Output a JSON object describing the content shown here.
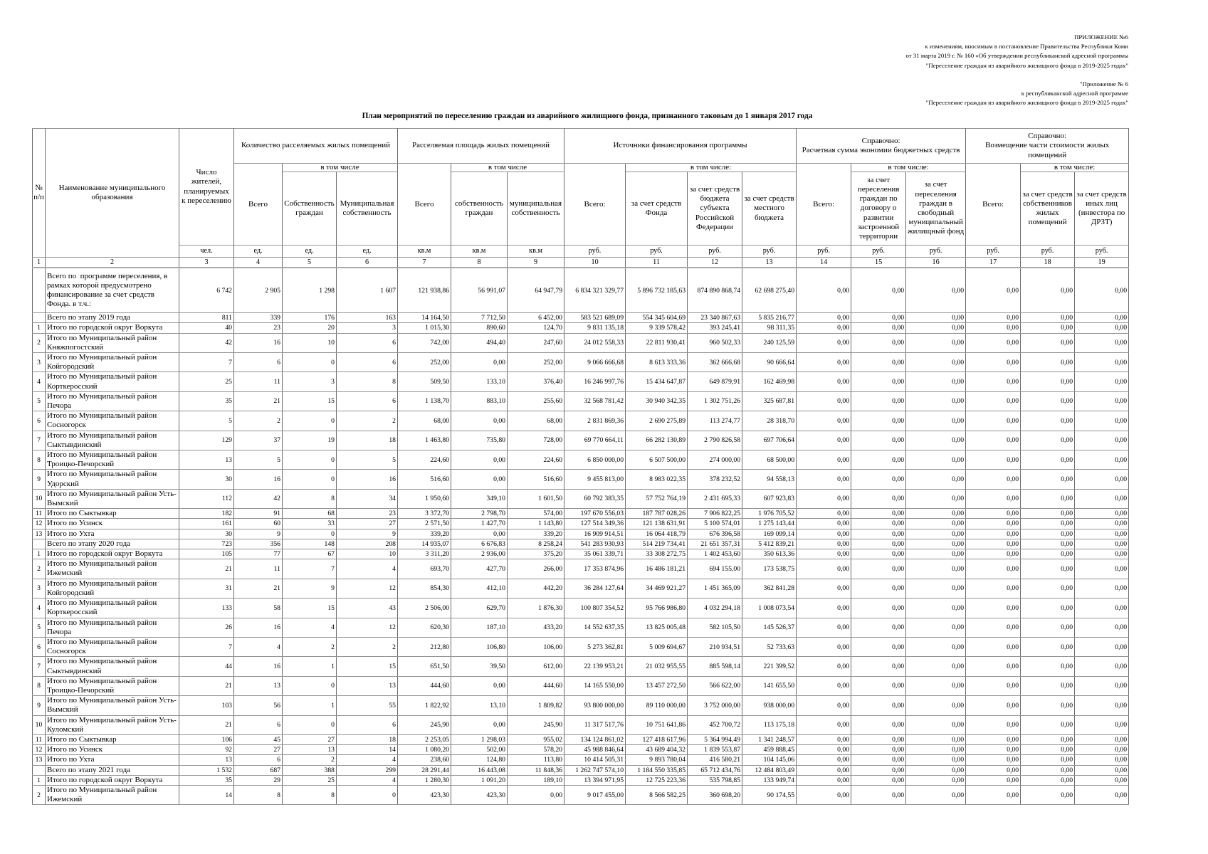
{
  "page": {
    "appendix_change_lines": [
      "ПРИЛОЖЕНИЕ №6",
      "к изменениям, вносимым в постановление Правительства Республики Коми",
      "от 31 марта 2019 г. № 160 «Об утверждении республиканской адресной программы",
      "\"Переселение граждан из аварийного жилищного фонда в 2019-2025 годах\""
    ],
    "appendix_program_lines": [
      "\"Приложение № 6",
      "к республиканской адресной программе",
      "\"Переселение граждан из аварийного жилищного фонда в 2019-2025 годах\""
    ],
    "title": "План мероприятий по переселению граждан из аварийного жилищного фонда, признанного таковым до 1 января 2017 года"
  },
  "table": {
    "header": {
      "col_num": "№ п/п",
      "col_name": "Наименование муниципального образования",
      "col_residents": "Число жителей, планируемых к переселению",
      "groups": {
        "dwellings": {
          "label": "Количество расселяемых жилых помещений",
          "total": "Всего",
          "including": "в том числе",
          "sub1": "Собственность граждан",
          "sub2": "Муниципальная собственность"
        },
        "area": {
          "label": "Расселяемая площадь жилых помещений",
          "total": "Всего",
          "including": "в том числе",
          "sub1": "собственность граждан",
          "sub2": "муниципальная собственность"
        },
        "financing": {
          "label": "Источники финансирования программы",
          "total": "Всего:",
          "including": "в том числе:",
          "sub1": "за счет средств Фонда",
          "sub2": "за счет средств бюджета субъекта Российской Федерации",
          "sub3": "за счет средств местного бюджета"
        },
        "savings": {
          "label": "Справочно:\nРасчетная сумма экономии бюджетных средств",
          "total": "Всего:",
          "including": "в том числе:",
          "sub1": "за счет переселения граждан по договору о развитии застроенной территории",
          "sub2": "за счет переселения граждан в свободный муниципальный жилищный фонд"
        },
        "reimbursement": {
          "label": "Справочно:\nВозмещение части стоимости жилых помещений",
          "total": "Всего:",
          "including": "в том числе:",
          "sub1": "за счет средств собственников жилых помещений",
          "sub2": "за счет средств иных лиц (инвестора по ДРЗТ)"
        }
      },
      "units": [
        "чел.",
        "ед.",
        "ед.",
        "ед.",
        "кв.м",
        "кв.м",
        "кв.м",
        "руб.",
        "руб.",
        "руб.",
        "руб.",
        "руб.",
        "руб.",
        "руб.",
        "руб.",
        "руб.",
        "руб."
      ],
      "col_numbers": [
        "1",
        "2",
        "3",
        "4",
        "5",
        "6",
        "7",
        "8",
        "9",
        "10",
        "11",
        "12",
        "13",
        "14",
        "15",
        "16",
        "17",
        "18",
        "19"
      ]
    },
    "rows": [
      {
        "num": "",
        "tall": true,
        "name": "Всего по  программе переселения, в рамках которой предусмотрено финансирование за счет средств Фонда. в т.ч.:",
        "values": [
          "6 742",
          "2 905",
          "1 298",
          "1 607",
          "121 938,86",
          "56 991,07",
          "64 947,79",
          "6 834 321 329,77",
          "5 896 732 185,63",
          "874 890 868,74",
          "62 698 275,40",
          "0,00",
          "0,00",
          "0,00",
          "0,00",
          "0,00",
          "0,00"
        ]
      },
      {
        "num": "",
        "name": "Всего по этапу 2019 года",
        "values": [
          "811",
          "339",
          "176",
          "163",
          "14 164,50",
          "7 712,50",
          "6 452,00",
          "583 521 689,09",
          "554 345 604,69",
          "23 340 867,63",
          "5 835 216,77",
          "0,00",
          "0,00",
          "0,00",
          "0,00",
          "0,00",
          "0,00"
        ]
      },
      {
        "num": "1",
        "name": "Итого по городской округ Воркута",
        "values": [
          "40",
          "23",
          "20",
          "3",
          "1 015,30",
          "890,60",
          "124,70",
          "9 831 135,18",
          "9 339 578,42",
          "393 245,41",
          "98 311,35",
          "0,00",
          "0,00",
          "0,00",
          "0,00",
          "0,00",
          "0,00"
        ]
      },
      {
        "num": "2",
        "name": "Итого по Муниципальный район Княжпогостский",
        "values": [
          "42",
          "16",
          "10",
          "6",
          "742,00",
          "494,40",
          "247,60",
          "24 012 558,33",
          "22 811 930,41",
          "960 502,33",
          "240 125,59",
          "0,00",
          "0,00",
          "0,00",
          "0,00",
          "0,00",
          "0,00"
        ]
      },
      {
        "num": "3",
        "name": "Итого по Муниципальный район Койгородский",
        "values": [
          "7",
          "6",
          "0",
          "6",
          "252,00",
          "0,00",
          "252,00",
          "9 066 666,68",
          "8 613 333,36",
          "362 666,68",
          "90 666,64",
          "0,00",
          "0,00",
          "0,00",
          "0,00",
          "0,00",
          "0,00"
        ]
      },
      {
        "num": "4",
        "name": "Итого по Муниципальный район Корткеросский",
        "values": [
          "25",
          "11",
          "3",
          "8",
          "509,50",
          "133,10",
          "376,40",
          "16 246 997,76",
          "15 434 647,87",
          "649 879,91",
          "162 469,98",
          "0,00",
          "0,00",
          "0,00",
          "0,00",
          "0,00",
          "0,00"
        ]
      },
      {
        "num": "5",
        "name": "Итого по Муниципальный район Печора",
        "values": [
          "35",
          "21",
          "15",
          "6",
          "1 138,70",
          "883,10",
          "255,60",
          "32 568 781,42",
          "30 940 342,35",
          "1 302 751,26",
          "325 687,81",
          "0,00",
          "0,00",
          "0,00",
          "0,00",
          "0,00",
          "0,00"
        ]
      },
      {
        "num": "6",
        "name": "Итого по Муниципальный район Сосногорск",
        "values": [
          "5",
          "2",
          "0",
          "2",
          "68,00",
          "0,00",
          "68,00",
          "2 831 869,36",
          "2 690 275,89",
          "113 274,77",
          "28 318,70",
          "0,00",
          "0,00",
          "0,00",
          "0,00",
          "0,00",
          "0,00"
        ]
      },
      {
        "num": "7",
        "name": "Итого по Муниципальный район Сыктывдинский",
        "values": [
          "129",
          "37",
          "19",
          "18",
          "1 463,80",
          "735,80",
          "728,00",
          "69 770 664,11",
          "66 282 130,89",
          "2 790 826,58",
          "697 706,64",
          "0,00",
          "0,00",
          "0,00",
          "0,00",
          "0,00",
          "0,00"
        ]
      },
      {
        "num": "8",
        "name": "Итого по Муниципальный район Троицко-Печорский",
        "values": [
          "13",
          "5",
          "0",
          "5",
          "224,60",
          "0,00",
          "224,60",
          "6 850 000,00",
          "6 507 500,00",
          "274 000,00",
          "68 500,00",
          "0,00",
          "0,00",
          "0,00",
          "0,00",
          "0,00",
          "0,00"
        ]
      },
      {
        "num": "9",
        "name": "Итого по Муниципальный район Удорский",
        "values": [
          "30",
          "16",
          "0",
          "16",
          "516,60",
          "0,00",
          "516,60",
          "9 455 813,00",
          "8 983 022,35",
          "378 232,52",
          "94 558,13",
          "0,00",
          "0,00",
          "0,00",
          "0,00",
          "0,00",
          "0,00"
        ]
      },
      {
        "num": "10",
        "name": "Итого по Муниципальный район Усть-Вымский",
        "values": [
          "112",
          "42",
          "8",
          "34",
          "1 950,60",
          "349,10",
          "1 601,50",
          "60 792 383,35",
          "57 752 764,19",
          "2 431 695,33",
          "607 923,83",
          "0,00",
          "0,00",
          "0,00",
          "0,00",
          "0,00",
          "0,00"
        ]
      },
      {
        "num": "11",
        "name": "Итого по Сыктывкар",
        "values": [
          "182",
          "91",
          "68",
          "23",
          "3 372,70",
          "2 798,70",
          "574,00",
          "197 670 556,03",
          "187 787 028,26",
          "7 906 822,25",
          "1 976 705,52",
          "0,00",
          "0,00",
          "0,00",
          "0,00",
          "0,00",
          "0,00"
        ]
      },
      {
        "num": "12",
        "name": "Итого по Усинск",
        "values": [
          "161",
          "60",
          "33",
          "27",
          "2 571,50",
          "1 427,70",
          "1 143,80",
          "127 514 349,36",
          "121 138 631,91",
          "5 100 574,01",
          "1 275 143,44",
          "0,00",
          "0,00",
          "0,00",
          "0,00",
          "0,00",
          "0,00"
        ]
      },
      {
        "num": "13",
        "name": "Итого по Ухта",
        "values": [
          "30",
          "9",
          "0",
          "9",
          "339,20",
          "0,00",
          "339,20",
          "16 909 914,51",
          "16 064 418,79",
          "676 396,58",
          "169 099,14",
          "0,00",
          "0,00",
          "0,00",
          "0,00",
          "0,00",
          "0,00"
        ]
      },
      {
        "num": "",
        "name": "Всего по этапу 2020 года",
        "values": [
          "723",
          "356",
          "148",
          "208",
          "14 935,07",
          "6 676,83",
          "8 258,24",
          "541 283 930,93",
          "514 219 734,41",
          "21 651 357,31",
          "5 412 839,21",
          "0,00",
          "0,00",
          "0,00",
          "0,00",
          "0,00",
          "0,00"
        ]
      },
      {
        "num": "1",
        "name": "Итого по городской округ Воркута",
        "values": [
          "105",
          "77",
          "67",
          "10",
          "3 311,20",
          "2 936,00",
          "375,20",
          "35 061 339,71",
          "33 308 272,75",
          "1 402 453,60",
          "350 613,36",
          "0,00",
          "0,00",
          "0,00",
          "0,00",
          "0,00",
          "0,00"
        ]
      },
      {
        "num": "2",
        "name": "Итого по Муниципальный район Ижемский",
        "values": [
          "21",
          "11",
          "7",
          "4",
          "693,70",
          "427,70",
          "266,00",
          "17 353 874,96",
          "16 486 181,21",
          "694 155,00",
          "173 538,75",
          "0,00",
          "0,00",
          "0,00",
          "0,00",
          "0,00",
          "0,00"
        ]
      },
      {
        "num": "3",
        "name": "Итого по Муниципальный район Койгородский",
        "values": [
          "31",
          "21",
          "9",
          "12",
          "854,30",
          "412,10",
          "442,20",
          "36 284 127,64",
          "34 469 921,27",
          "1 451 365,09",
          "362 841,28",
          "0,00",
          "0,00",
          "0,00",
          "0,00",
          "0,00",
          "0,00"
        ]
      },
      {
        "num": "4",
        "name": "Итого по Муниципальный район Корткеросский",
        "values": [
          "133",
          "58",
          "15",
          "43",
          "2 506,00",
          "629,70",
          "1 876,30",
          "100 807 354,52",
          "95 766 986,80",
          "4 032 294,18",
          "1 008 073,54",
          "0,00",
          "0,00",
          "0,00",
          "0,00",
          "0,00",
          "0,00"
        ]
      },
      {
        "num": "5",
        "name": "Итого по Муниципальный район Печора",
        "values": [
          "26",
          "16",
          "4",
          "12",
          "620,30",
          "187,10",
          "433,20",
          "14 552 637,35",
          "13 825 005,48",
          "582 105,50",
          "145 526,37",
          "0,00",
          "0,00",
          "0,00",
          "0,00",
          "0,00",
          "0,00"
        ]
      },
      {
        "num": "6",
        "name": "Итого по Муниципальный район Сосногорск",
        "values": [
          "7",
          "4",
          "2",
          "2",
          "212,80",
          "106,80",
          "106,00",
          "5 273 362,81",
          "5 009 694,67",
          "210 934,51",
          "52 733,63",
          "0,00",
          "0,00",
          "0,00",
          "0,00",
          "0,00",
          "0,00"
        ]
      },
      {
        "num": "7",
        "name": "Итого по Муниципальный район Сыктывдинский",
        "values": [
          "44",
          "16",
          "1",
          "15",
          "651,50",
          "39,50",
          "612,00",
          "22 139 953,21",
          "21 032 955,55",
          "885 598,14",
          "221 399,52",
          "0,00",
          "0,00",
          "0,00",
          "0,00",
          "0,00",
          "0,00"
        ]
      },
      {
        "num": "8",
        "name": "Итого по Муниципальный район Троицко-Печорский",
        "values": [
          "21",
          "13",
          "0",
          "13",
          "444,60",
          "0,00",
          "444,60",
          "14 165 550,00",
          "13 457 272,50",
          "566 622,00",
          "141 655,50",
          "0,00",
          "0,00",
          "0,00",
          "0,00",
          "0,00",
          "0,00"
        ]
      },
      {
        "num": "9",
        "name": "Итого по Муниципальный район Усть-Вымский",
        "values": [
          "103",
          "56",
          "1",
          "55",
          "1 822,92",
          "13,10",
          "1 809,82",
          "93 800 000,00",
          "89 110 000,00",
          "3 752 000,00",
          "938 000,00",
          "0,00",
          "0,00",
          "0,00",
          "0,00",
          "0,00",
          "0,00"
        ]
      },
      {
        "num": "10",
        "name": "Итого по Муниципальный район Усть-Куломский",
        "values": [
          "21",
          "6",
          "0",
          "6",
          "245,90",
          "0,00",
          "245,90",
          "11 317 517,76",
          "10 751 641,86",
          "452 700,72",
          "113 175,18",
          "0,00",
          "0,00",
          "0,00",
          "0,00",
          "0,00",
          "0,00"
        ]
      },
      {
        "num": "11",
        "name": "Итого по Сыктывкар",
        "values": [
          "106",
          "45",
          "27",
          "18",
          "2 253,05",
          "1 298,03",
          "955,02",
          "134 124 861,02",
          "127 418 617,96",
          "5 364 994,49",
          "1 341 248,57",
          "0,00",
          "0,00",
          "0,00",
          "0,00",
          "0,00",
          "0,00"
        ]
      },
      {
        "num": "12",
        "name": "Итого по Усинск",
        "values": [
          "92",
          "27",
          "13",
          "14",
          "1 080,20",
          "502,00",
          "578,20",
          "45 988 846,64",
          "43 689 404,32",
          "1 839 553,87",
          "459 888,45",
          "0,00",
          "0,00",
          "0,00",
          "0,00",
          "0,00",
          "0,00"
        ]
      },
      {
        "num": "13",
        "name": "Итого по Ухта",
        "values": [
          "13",
          "6",
          "2",
          "4",
          "238,60",
          "124,80",
          "113,80",
          "10 414 505,31",
          "9 893 780,04",
          "416 580,21",
          "104 145,06",
          "0,00",
          "0,00",
          "0,00",
          "0,00",
          "0,00",
          "0,00"
        ]
      },
      {
        "num": "",
        "name": "Всего по этапу 2021 года",
        "values": [
          "1 532",
          "687",
          "388",
          "299",
          "28 291,44",
          "16 443,08",
          "11 848,36",
          "1 262 747 574,10",
          "1 184 550 335,85",
          "65 712 434,76",
          "12 484 803,49",
          "0,00",
          "0,00",
          "0,00",
          "0,00",
          "0,00",
          "0,00"
        ]
      },
      {
        "num": "1",
        "name": "Итого по городской округ Воркута",
        "values": [
          "35",
          "29",
          "25",
          "4",
          "1 280,30",
          "1 091,20",
          "189,10",
          "13 394 971,95",
          "12 725 223,36",
          "535 798,85",
          "133 949,74",
          "0,00",
          "0,00",
          "0,00",
          "0,00",
          "0,00",
          "0,00"
        ]
      },
      {
        "num": "2",
        "name": "Итого по Муниципальный район Ижемский",
        "values": [
          "14",
          "8",
          "8",
          "0",
          "423,30",
          "423,30",
          "0,00",
          "9 017 455,00",
          "8 566 582,25",
          "360 698,20",
          "90 174,55",
          "0,00",
          "0,00",
          "0,00",
          "0,00",
          "0,00",
          "0,00"
        ]
      }
    ]
  }
}
